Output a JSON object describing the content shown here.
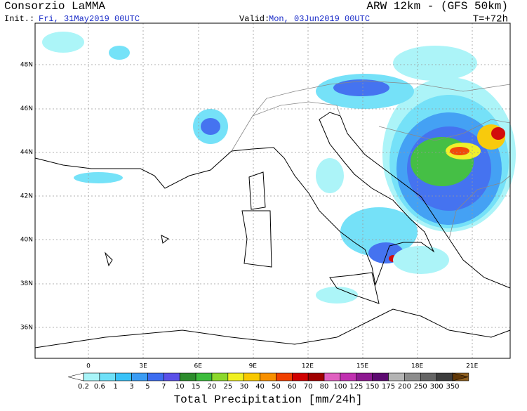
{
  "header": {
    "left_title": "Consorzio LaMMA",
    "right_title": "ARW 12km - (GFS 50km)",
    "init_label": "Init.:",
    "init_value": "Fri, 31May2019 00UTC",
    "valid_label": "Valid:",
    "valid_value": "Mon, 03Jun2019 00UTC",
    "lead_time": "T=+72h"
  },
  "map": {
    "lat_labels": [
      "48N",
      "46N",
      "44N",
      "42N",
      "40N",
      "38N",
      "36N"
    ],
    "lon_labels": [
      "0",
      "3E",
      "6E",
      "9E",
      "12E",
      "15E",
      "18E",
      "21E"
    ]
  },
  "colorbar": {
    "labels": [
      0.2,
      0.6,
      1,
      3,
      5,
      7,
      10,
      15,
      20,
      25,
      30,
      40,
      50,
      60,
      70,
      80,
      100,
      125,
      150,
      175,
      200,
      250,
      300,
      350
    ],
    "colors": [
      "#ffffff",
      "#a8f4f8",
      "#6ee0f8",
      "#38c2f8",
      "#3a9cf4",
      "#3c6cf0",
      "#5a50e8",
      "#2c8c2c",
      "#3cbc3c",
      "#8cd82c",
      "#f0f020",
      "#f8c800",
      "#f89000",
      "#f04000",
      "#d00000",
      "#a00000",
      "#e060c0",
      "#c030b0",
      "#8c1890",
      "#5c0a70",
      "#b4b4b4",
      "#8c8c8c",
      "#646464",
      "#3c3c3c",
      "#906020",
      "#603808"
    ],
    "title": "Total Precipitation [mm/24h]"
  }
}
